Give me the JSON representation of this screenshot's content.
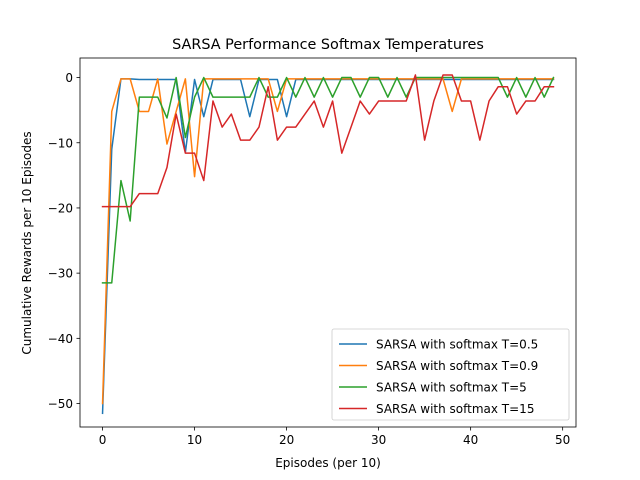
{
  "chart_data": {
    "type": "line",
    "title": "SARSA Performance Softmax Temperatures",
    "xlabel": "Episodes (per 10)",
    "ylabel": "Cumulative Rewards per 10 Episodes",
    "xlim": [
      -2.45,
      51.45
    ],
    "ylim": [
      -53.6,
      3.0
    ],
    "xticks": [
      0,
      10,
      20,
      30,
      40,
      50
    ],
    "yticks": [
      0,
      -10,
      -20,
      -30,
      -40,
      -50
    ],
    "xtick_labels": [
      "0",
      "10",
      "20",
      "30",
      "40",
      "50"
    ],
    "ytick_labels": [
      "0",
      "−10",
      "−20",
      "−30",
      "−40",
      "−50"
    ],
    "grid": false,
    "legend_position": "lower-right",
    "x": [
      0,
      1,
      2,
      3,
      4,
      5,
      6,
      7,
      8,
      9,
      10,
      11,
      12,
      13,
      14,
      15,
      16,
      17,
      18,
      19,
      20,
      21,
      22,
      23,
      24,
      25,
      26,
      27,
      28,
      29,
      30,
      31,
      32,
      33,
      34,
      35,
      36,
      37,
      38,
      39,
      40,
      41,
      42,
      43,
      44,
      45,
      46,
      47,
      48,
      49
    ],
    "series": [
      {
        "name": "SARSA with softmax T=0.5",
        "color": "#1f77b4",
        "values": [
          -51.5,
          -11.0,
          -0.2,
          -0.2,
          -0.3,
          -0.3,
          -0.3,
          -0.3,
          -0.3,
          -11.5,
          -0.3,
          -6.0,
          -0.3,
          -0.3,
          -0.3,
          -0.3,
          -6.0,
          -0.3,
          -0.3,
          -0.3,
          -6.0,
          -0.3,
          -0.3,
          -0.3,
          -0.3,
          -0.3,
          -0.3,
          -0.3,
          -0.3,
          -0.3,
          -0.3,
          -0.3,
          -0.3,
          -0.3,
          -0.3,
          -0.3,
          -0.3,
          -0.3,
          -0.3,
          -0.3,
          -0.3,
          -0.3,
          -0.3,
          -0.3,
          -0.3,
          -0.3,
          -0.3,
          -0.3,
          -0.3,
          -0.3
        ]
      },
      {
        "name": "SARSA with softmax T=0.9",
        "color": "#ff7f0e",
        "values": [
          -50.0,
          -5.2,
          -0.2,
          -0.2,
          -5.2,
          -5.2,
          -0.2,
          -10.2,
          -5.2,
          -0.2,
          -15.2,
          -0.2,
          -0.2,
          -0.2,
          -0.2,
          -0.2,
          -0.2,
          -0.2,
          -0.2,
          -5.2,
          -0.2,
          -0.2,
          -0.2,
          -0.2,
          -0.2,
          -0.2,
          -0.2,
          -0.2,
          -0.2,
          -0.2,
          -0.2,
          -0.2,
          -0.2,
          -0.2,
          -0.2,
          -0.2,
          -0.2,
          -0.2,
          -5.2,
          -0.2,
          -0.2,
          -0.2,
          -0.2,
          -0.2,
          -0.2,
          -0.2,
          -0.2,
          -0.2,
          -0.2,
          -0.2
        ]
      },
      {
        "name": "SARSA with softmax T=5",
        "color": "#2ca02c",
        "values": [
          -31.5,
          -31.5,
          -15.8,
          -22.0,
          -3.0,
          -3.0,
          -3.0,
          -6.2,
          0.0,
          -9.2,
          -3.0,
          0.0,
          -3.0,
          -3.0,
          -3.0,
          -3.0,
          -3.0,
          0.0,
          -3.0,
          -3.0,
          0.0,
          -3.0,
          0.0,
          -3.0,
          0.0,
          -3.0,
          0.0,
          0.0,
          -3.0,
          0.0,
          0.0,
          -3.0,
          0.0,
          -3.0,
          0.0,
          0.0,
          0.0,
          0.0,
          0.0,
          0.0,
          0.0,
          0.0,
          0.0,
          0.0,
          -3.0,
          0.0,
          -3.0,
          0.0,
          -3.0,
          0.0
        ]
      },
      {
        "name": "SARSA with softmax T=15",
        "color": "#d62728",
        "values": [
          -19.8,
          -19.8,
          -19.8,
          -19.8,
          -17.8,
          -17.8,
          -17.8,
          -13.8,
          -5.6,
          -11.6,
          -11.6,
          -15.8,
          -3.6,
          -7.6,
          -5.6,
          -9.6,
          -9.6,
          -7.6,
          -1.4,
          -9.6,
          -7.6,
          -7.6,
          -5.6,
          -3.6,
          -7.6,
          -3.6,
          -11.6,
          -7.6,
          -3.6,
          -5.6,
          -3.6,
          -3.6,
          -3.6,
          -3.6,
          0.4,
          -9.6,
          -3.6,
          0.4,
          0.4,
          -3.6,
          -3.6,
          -9.6,
          -3.6,
          -1.4,
          -1.4,
          -5.6,
          -3.6,
          -3.6,
          -1.4,
          -1.4
        ]
      }
    ]
  }
}
